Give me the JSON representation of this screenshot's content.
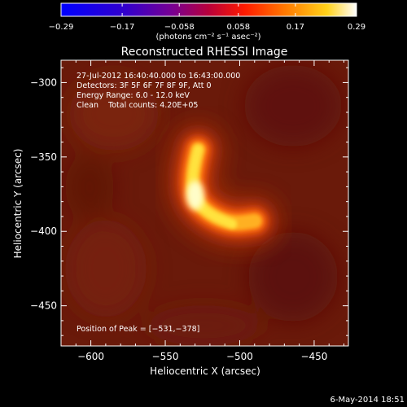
{
  "chart_data": {
    "type": "heatmap",
    "title": "Reconstructed RHESSI Image",
    "xlabel": "Heliocentric X (arcsec)",
    "ylabel": "Heliocentric Y (arcsec)",
    "xlim": [
      -620,
      -427
    ],
    "ylim": [
      -477,
      -285
    ],
    "x_ticks": [
      -600,
      -550,
      -500,
      -450
    ],
    "x_tick_labels": [
      "−600",
      "−550",
      "−500",
      "−450"
    ],
    "y_ticks": [
      -300,
      -350,
      -400,
      -450
    ],
    "y_tick_labels": [
      "−300",
      "−350",
      "−400",
      "−450"
    ],
    "colorbar": {
      "colormap": "blue-purple-red-yellow-white",
      "range": [
        -0.29,
        0.29
      ],
      "ticks": [
        -0.29,
        -0.17,
        -0.058,
        0.058,
        0.17,
        0.29
      ],
      "tick_labels": [
        "−0.29",
        "−0.17",
        "−0.058",
        "0.058",
        "0.17",
        "0.29"
      ],
      "unit_label": "(photons cm⁻² s⁻¹ asec⁻²)"
    },
    "annotations": [
      "27-Jul-2012 16:40:40.000 to 16:43:00.000",
      "Detectors: 3F 5F 6F 7F 8F 9F, Att 0",
      "Energy Range: 6.0 - 12.0 keV",
      "Clean    Total counts: 4.20E+05"
    ],
    "peak_label": "Position of Peak = [−531,−378]",
    "peak": [
      -531,
      -378
    ],
    "source_arc": [
      {
        "x": -528,
        "y": -345,
        "value": 0.12
      },
      {
        "x": -532,
        "y": -360,
        "value": 0.22
      },
      {
        "x": -531,
        "y": -378,
        "value": 0.29
      },
      {
        "x": -520,
        "y": -389,
        "value": 0.25
      },
      {
        "x": -505,
        "y": -395,
        "value": 0.19
      },
      {
        "x": -490,
        "y": -393,
        "value": 0.14
      }
    ],
    "background_level": 0.05,
    "grid": false
  },
  "footer": {
    "date": "6-May-2014 18:51"
  }
}
